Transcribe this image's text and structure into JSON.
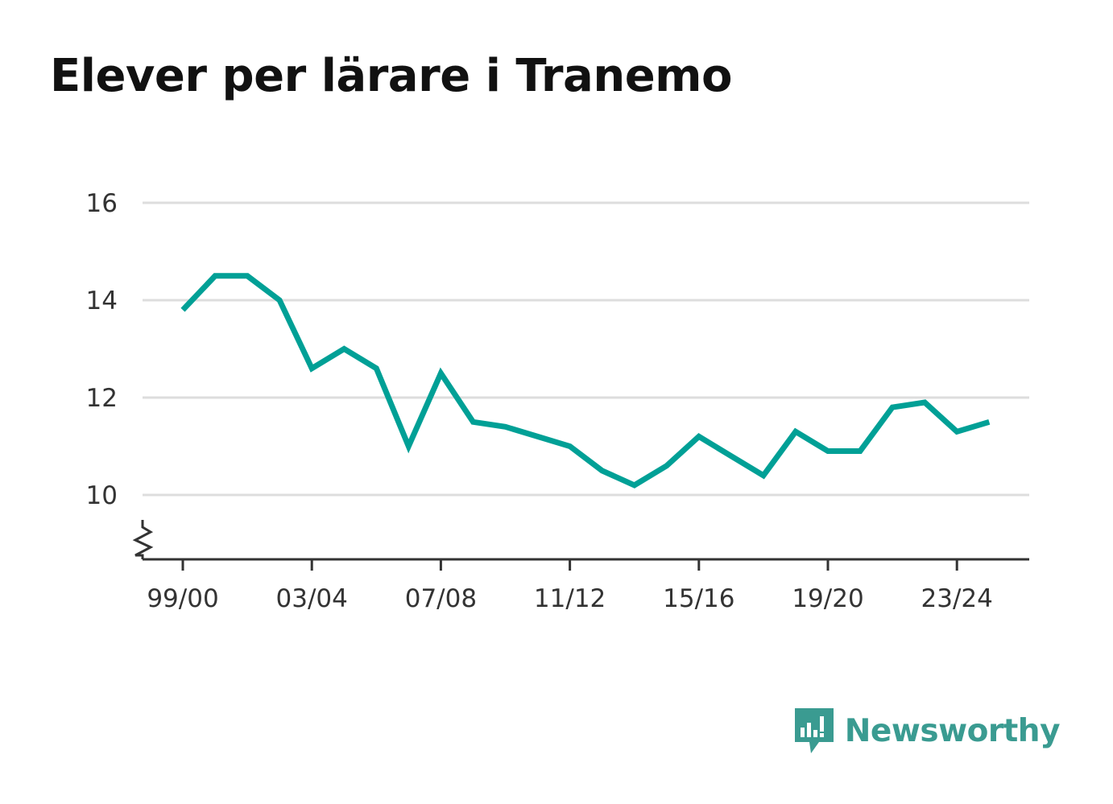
{
  "title": "Elever per lärare i Tranemo",
  "brand": {
    "name": "Newsworthy",
    "icon": "newsworthy-logo-icon",
    "color": "#3a9b91"
  },
  "colors": {
    "line": "#00a096",
    "grid": "#dddddd",
    "axis": "#333333",
    "text": "#333333"
  },
  "chart_data": {
    "type": "line",
    "title": "Elever per lärare i Tranemo",
    "xlabel": "",
    "ylabel": "",
    "grid": true,
    "y_axis_break": true,
    "ylim": [
      9,
      16
    ],
    "yticks": [
      10,
      12,
      14,
      16
    ],
    "ytick_labels": [
      "10",
      "12",
      "14",
      "16"
    ],
    "x": [
      "99/00",
      "00/01",
      "01/02",
      "02/03",
      "03/04",
      "04/05",
      "05/06",
      "06/07",
      "07/08",
      "08/09",
      "09/10",
      "10/11",
      "11/12",
      "12/13",
      "13/14",
      "14/15",
      "15/16",
      "16/17",
      "17/18",
      "18/19",
      "19/20",
      "20/21",
      "21/22",
      "22/23",
      "23/24",
      "24/25"
    ],
    "xtick_labels": [
      "99/00",
      "03/04",
      "07/08",
      "11/12",
      "15/16",
      "19/20",
      "23/24"
    ],
    "series": [
      {
        "values": [
          13.8,
          14.5,
          14.5,
          14.0,
          12.6,
          13.0,
          12.6,
          11.0,
          12.5,
          11.5,
          11.4,
          11.2,
          11.0,
          10.5,
          10.2,
          10.6,
          11.2,
          10.8,
          10.4,
          11.3,
          10.9,
          10.9,
          11.8,
          11.9,
          11.3,
          11.5
        ]
      }
    ]
  }
}
